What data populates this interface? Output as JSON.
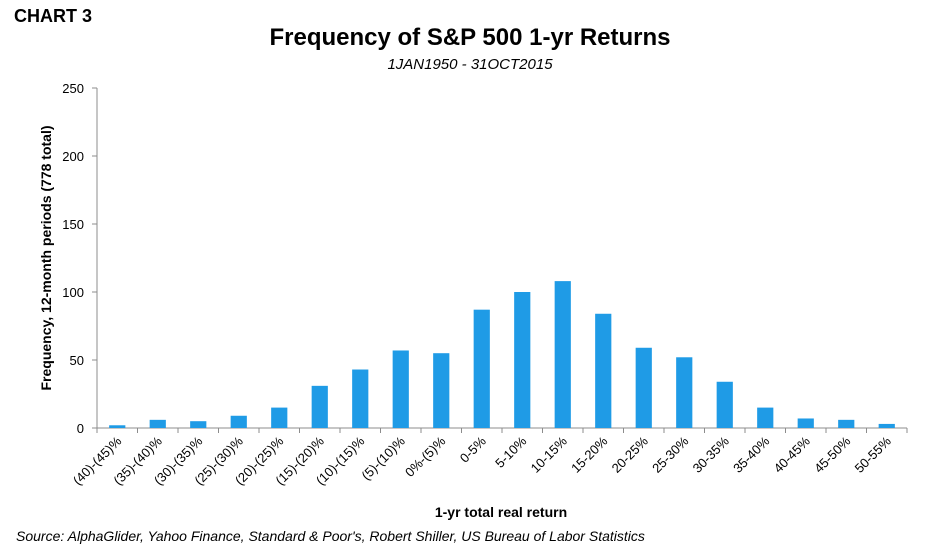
{
  "chart_label": "CHART 3",
  "chart_data": {
    "type": "bar",
    "title": "Frequency of S&P 500 1-yr Returns",
    "subtitle": "1JAN1950 - 31OCT2015",
    "xlabel": "1-yr total real return",
    "ylabel": "Frequency, 12-month periods (778 total)",
    "ylim": [
      0,
      250
    ],
    "yticks": [
      0,
      50,
      100,
      150,
      200,
      250
    ],
    "categories": [
      "(40)-(45)%",
      "(35)-(40)%",
      "(30)-(35)%",
      "(25)-(30)%",
      "(20)-(25)%",
      "(15)-(20)%",
      "(10)-(15)%",
      "(5)-(10)%",
      "0%-(5)%",
      "0-5%",
      "5-10%",
      "10-15%",
      "15-20%",
      "20-25%",
      "25-30%",
      "30-35%",
      "35-40%",
      "40-45%",
      "45-50%",
      "50-55%"
    ],
    "values": [
      2,
      6,
      5,
      9,
      15,
      31,
      43,
      57,
      55,
      87,
      100,
      108,
      84,
      59,
      52,
      34,
      15,
      7,
      6,
      3
    ],
    "bar_color": "#1f9be6",
    "grid": false
  },
  "source": "Source: AlphaGlider, Yahoo Finance, Standard & Poor's, Robert Shiller, US Bureau of Labor Statistics"
}
